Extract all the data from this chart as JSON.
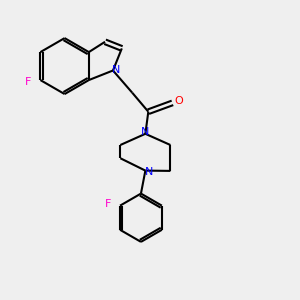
{
  "bg_color": "#efefef",
  "bond_color": "#000000",
  "nitrogen_color": "#0000ff",
  "oxygen_color": "#ff0000",
  "fluorine_color": "#ff00cc",
  "line_width": 1.5,
  "fig_width": 3.0,
  "fig_height": 3.0,
  "dpi": 100,
  "xlim": [
    0,
    10
  ],
  "ylim": [
    0,
    10
  ]
}
